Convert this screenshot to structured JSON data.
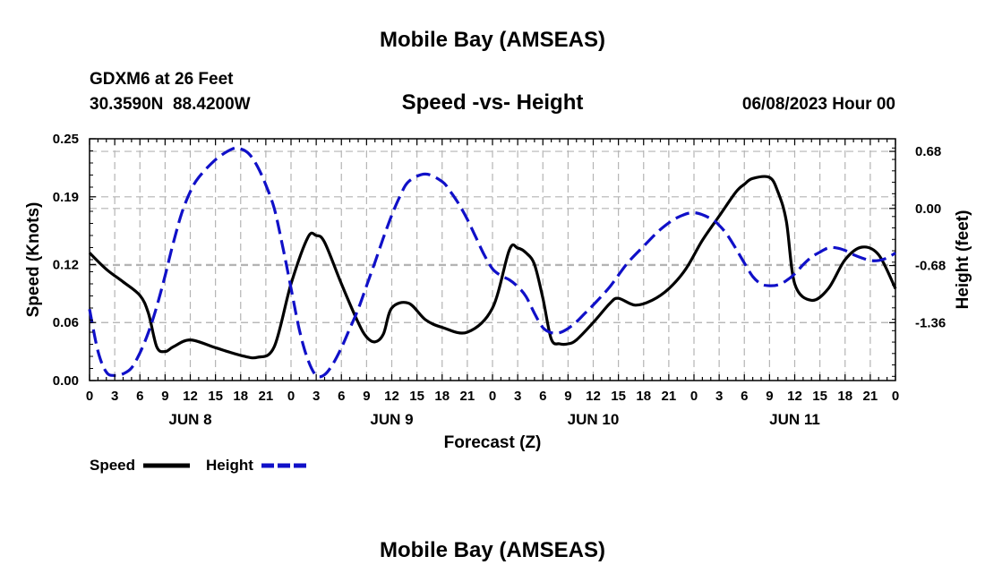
{
  "page": {
    "title": "Mobile Bay (AMSEAS)",
    "station_line": "GDXM6 at 26 Feet",
    "coords_line": "30.3590N  88.4200W",
    "subtitle": "Speed -vs- Height",
    "datetime": "06/08/2023 Hour 00",
    "footer_title": "Mobile Bay (AMSEAS)"
  },
  "chart_data": {
    "type": "line",
    "title": "Speed -vs- Height",
    "xlabel": "Forecast (Z)",
    "ylabel": "Speed (Knots)",
    "y2label": "Height (feet)",
    "x_range_hours": [
      0,
      96
    ],
    "x_tick_labels": [
      "0",
      "3",
      "6",
      "9",
      "12",
      "15",
      "18",
      "21",
      "0",
      "3",
      "6",
      "9",
      "12",
      "15",
      "18",
      "21",
      "0",
      "3",
      "6",
      "9",
      "12",
      "15",
      "18",
      "21",
      "0",
      "3",
      "6",
      "9",
      "12",
      "15",
      "18",
      "21",
      "0"
    ],
    "day_labels": [
      {
        "label": "JUN 8",
        "hour": 12
      },
      {
        "label": "JUN 9",
        "hour": 36
      },
      {
        "label": "JUN 10",
        "hour": 60
      },
      {
        "label": "JUN 11",
        "hour": 84
      }
    ],
    "ylim": [
      0,
      0.25
    ],
    "y_tick_values": [
      0,
      0.06,
      0.12,
      0.19,
      0.25
    ],
    "y_tick_labels": [
      "0.00",
      "0.06",
      "0.12",
      "0.19",
      "0.25"
    ],
    "y2lim": [
      -2.05,
      0.83
    ],
    "y2_tick_values": [
      0.68,
      0.0,
      -0.68,
      -1.36
    ],
    "y2_tick_labels": [
      "0.68",
      "0.00",
      "-0.68",
      "-1.36"
    ],
    "grid": true,
    "legend_position": "bottom-left",
    "series": [
      {
        "name": "Speed",
        "axis": "left",
        "color": "#000000",
        "dash": "solid",
        "x": [
          0,
          2,
          4,
          6,
          7,
          8,
          9,
          10,
          12,
          15,
          18,
          20,
          22,
          24,
          26,
          27,
          28,
          30,
          32,
          33,
          34,
          35,
          36,
          38,
          40,
          42,
          45,
          48,
          50,
          51,
          52,
          53,
          54,
          55,
          56,
          57,
          58,
          60,
          62,
          63,
          65,
          67,
          69,
          71,
          73,
          75,
          77,
          78,
          79,
          81,
          82,
          83,
          84,
          86,
          88,
          90,
          92,
          94,
          96
        ],
        "values": [
          0.132,
          0.115,
          0.102,
          0.088,
          0.07,
          0.035,
          0.03,
          0.035,
          0.042,
          0.034,
          0.026,
          0.024,
          0.035,
          0.1,
          0.148,
          0.15,
          0.143,
          0.1,
          0.06,
          0.045,
          0.04,
          0.048,
          0.075,
          0.08,
          0.063,
          0.055,
          0.05,
          0.075,
          0.135,
          0.137,
          0.132,
          0.12,
          0.085,
          0.043,
          0.038,
          0.038,
          0.042,
          0.06,
          0.08,
          0.085,
          0.078,
          0.083,
          0.095,
          0.115,
          0.145,
          0.17,
          0.195,
          0.203,
          0.209,
          0.21,
          0.195,
          0.165,
          0.1,
          0.083,
          0.095,
          0.125,
          0.138,
          0.13,
          0.095
        ]
      },
      {
        "name": "Height",
        "axis": "right",
        "color": "#1010c8",
        "dash": "dashed",
        "x": [
          0,
          1,
          2,
          3,
          4,
          5,
          6,
          7,
          8,
          9,
          10,
          11,
          12,
          13,
          15,
          17,
          18,
          19,
          20,
          21,
          22,
          23,
          24,
          25,
          26,
          27,
          28,
          29,
          30,
          31,
          32,
          33,
          34,
          35,
          36,
          37,
          38,
          40,
          42,
          43,
          44,
          45,
          46,
          47,
          48,
          49,
          50,
          51,
          52,
          53,
          54,
          55,
          56,
          57,
          58,
          59,
          60,
          62,
          64,
          66,
          68,
          70,
          72,
          74,
          75,
          76,
          77,
          78,
          79,
          80,
          81,
          82,
          83,
          84,
          85,
          86,
          87,
          88,
          89,
          90,
          91,
          92,
          93,
          94,
          95,
          96
        ],
        "values": [
          -1.2,
          -1.7,
          -1.95,
          -1.99,
          -1.97,
          -1.9,
          -1.72,
          -1.48,
          -1.17,
          -0.8,
          -0.4,
          -0.05,
          0.2,
          0.37,
          0.58,
          0.71,
          0.71,
          0.65,
          0.5,
          0.28,
          0.0,
          -0.45,
          -0.95,
          -1.45,
          -1.8,
          -1.99,
          -1.98,
          -1.85,
          -1.66,
          -1.43,
          -1.2,
          -0.92,
          -0.64,
          -0.35,
          -0.08,
          0.15,
          0.32,
          0.41,
          0.32,
          0.2,
          0.05,
          -0.13,
          -0.34,
          -0.55,
          -0.72,
          -0.8,
          -0.85,
          -0.93,
          -1.05,
          -1.25,
          -1.42,
          -1.48,
          -1.48,
          -1.43,
          -1.35,
          -1.25,
          -1.15,
          -0.93,
          -0.66,
          -0.45,
          -0.25,
          -0.11,
          -0.05,
          -0.12,
          -0.2,
          -0.32,
          -0.48,
          -0.65,
          -0.81,
          -0.9,
          -0.92,
          -0.91,
          -0.86,
          -0.78,
          -0.67,
          -0.58,
          -0.52,
          -0.47,
          -0.47,
          -0.5,
          -0.55,
          -0.59,
          -0.62,
          -0.62,
          -0.59,
          -0.53
        ]
      }
    ]
  }
}
